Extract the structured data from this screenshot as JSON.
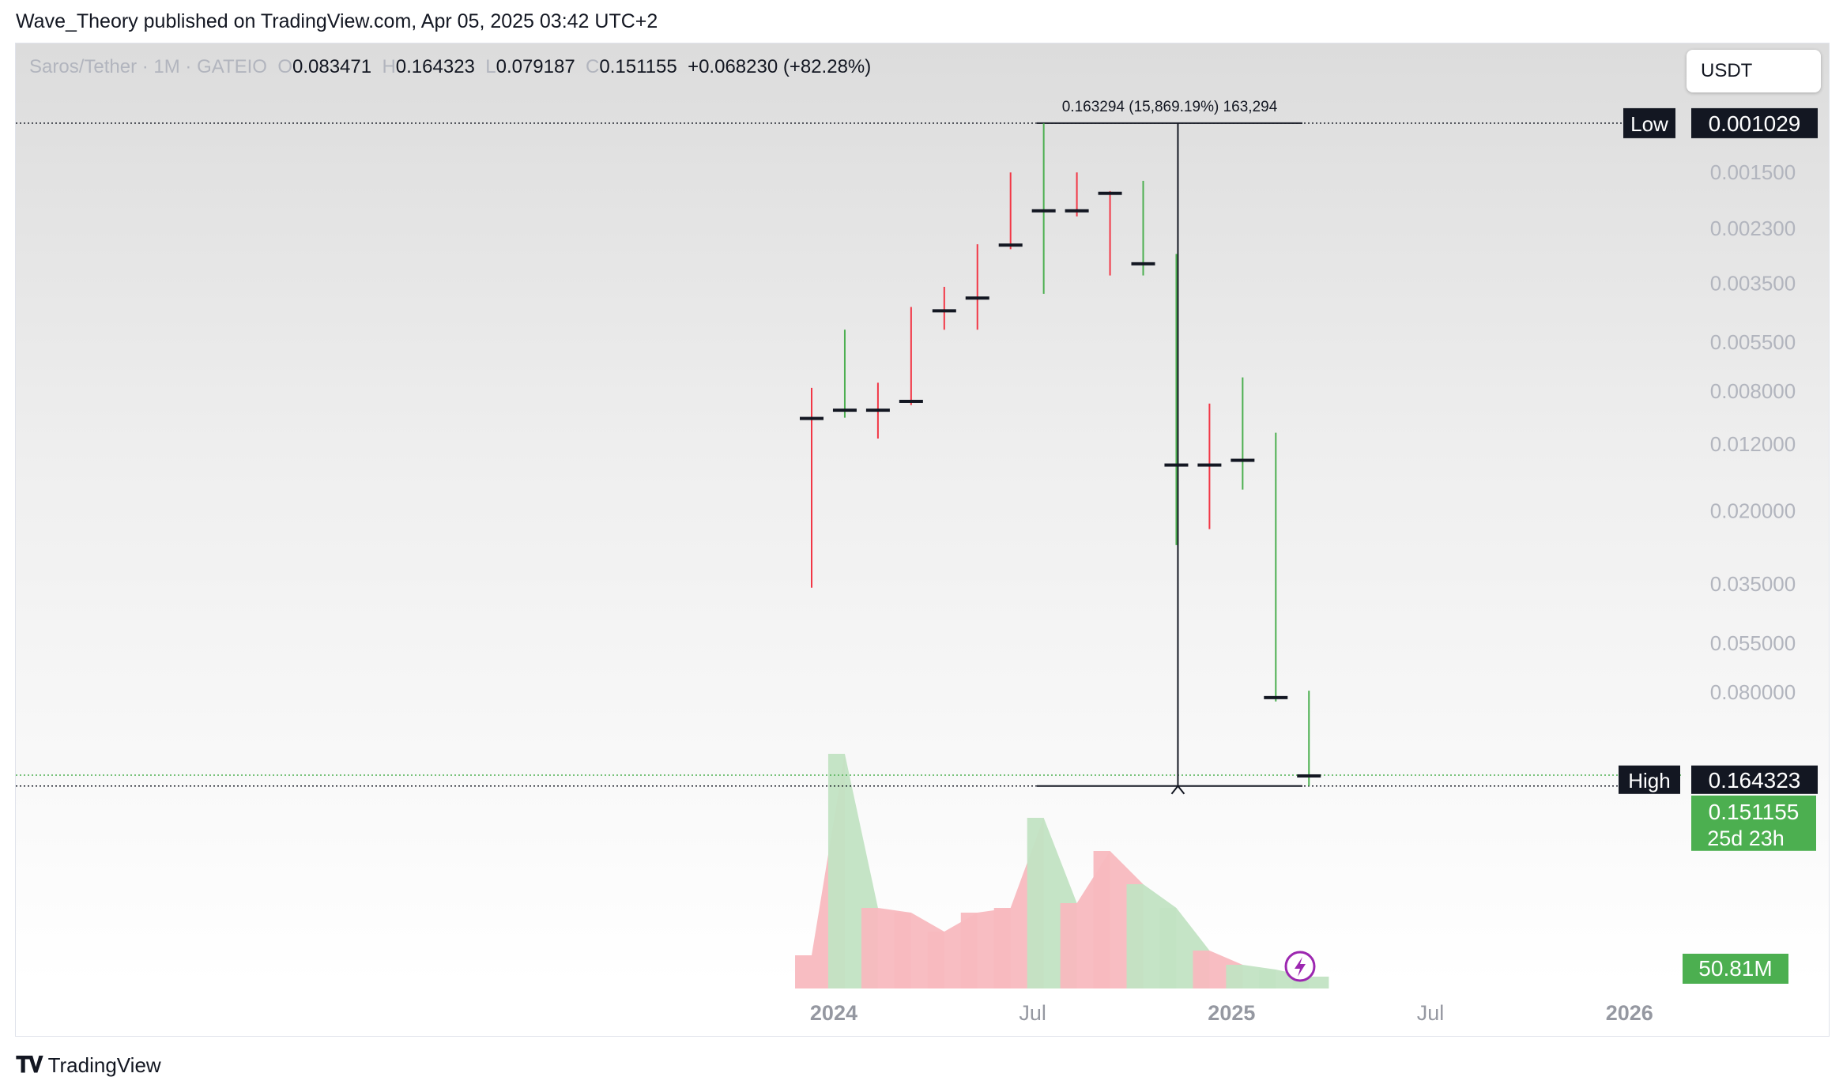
{
  "header": {
    "publisher": "Wave_Theory published on TradingView.com, Apr 05, 2025 03:42 UTC+2"
  },
  "legend": {
    "symbol": "Saros/Tether · 1M · GATEIO",
    "o_label": "O",
    "open": "0.083471",
    "h_label": "H",
    "high": "0.164323",
    "l_label": "L",
    "low": "0.079187",
    "c_label": "C",
    "close": "0.151155",
    "change": "+0.068230 (+82.28%)"
  },
  "currency": "USDT",
  "footer": {
    "brand": "TradingView",
    "logo": "tradingview-logo-icon"
  },
  "colors": {
    "up": "#4caf50",
    "down": "#f23645",
    "vol_up": "#c2e3c3",
    "vol_down": "#f8b9bf"
  },
  "chart_data": {
    "type": "candlestick",
    "scale": "log",
    "x_ticks": [
      "2024",
      "Jul",
      "2025",
      "Jul",
      "2026"
    ],
    "y_ticks": [
      "0.080000",
      "0.055000",
      "0.035000",
      "0.020000",
      "0.012000",
      "0.008000",
      "0.005500",
      "0.003500",
      "0.002300",
      "0.001500"
    ],
    "high_marker": {
      "label": "High",
      "value": "0.164323"
    },
    "low_marker": {
      "label": "Low",
      "value": "0.001029"
    },
    "last_price": {
      "value": "0.151155",
      "countdown": "25d 23h"
    },
    "volume_label": "50.81M",
    "measure_label": "0.163294 (15,869.19%) 163,294",
    "candles": [
      {
        "date": "2023-12",
        "o": 0.0098,
        "h": 0.036,
        "l": 0.0078,
        "c": 0.0078
      },
      {
        "date": "2024-01",
        "o": 0.0078,
        "h": 0.0098,
        "l": 0.005,
        "c": 0.0092
      },
      {
        "date": "2024-02",
        "o": 0.0092,
        "h": 0.0115,
        "l": 0.0075,
        "c": 0.0087
      },
      {
        "date": "2024-03",
        "o": 0.0086,
        "h": 0.0089,
        "l": 0.0042,
        "c": 0.0043
      },
      {
        "date": "2024-04",
        "o": 0.0043,
        "h": 0.005,
        "l": 0.0036,
        "c": 0.0039
      },
      {
        "date": "2024-05",
        "o": 0.0039,
        "h": 0.005,
        "l": 0.0026,
        "c": 0.0026
      },
      {
        "date": "2024-06",
        "o": 0.0026,
        "h": 0.0027,
        "l": 0.0015,
        "c": 0.0016
      },
      {
        "date": "2024-07",
        "o": 0.0016,
        "h": 0.0038,
        "l": 0.00103,
        "c": 0.002
      },
      {
        "date": "2024-08",
        "o": 0.002,
        "h": 0.0021,
        "l": 0.0015,
        "c": 0.0018
      },
      {
        "date": "2024-09",
        "o": 0.00175,
        "h": 0.0033,
        "l": 0.00173,
        "c": 0.00174
      },
      {
        "date": "2024-10",
        "o": 0.00175,
        "h": 0.0033,
        "l": 0.0016,
        "c": 0.003
      },
      {
        "date": "2024-11",
        "o": 0.003,
        "h": 0.026,
        "l": 0.0028,
        "c": 0.014
      },
      {
        "date": "2024-12",
        "o": 0.014,
        "h": 0.023,
        "l": 0.0088,
        "c": 0.0095
      },
      {
        "date": "2025-01",
        "o": 0.0095,
        "h": 0.017,
        "l": 0.0072,
        "c": 0.0135
      },
      {
        "date": "2025-02",
        "o": 0.0135,
        "h": 0.086,
        "l": 0.011,
        "c": 0.083
      },
      {
        "date": "2025-03",
        "o": 0.083471,
        "h": 0.164323,
        "l": 0.079187,
        "c": 0.151155
      }
    ],
    "volume": [
      {
        "date": "2023-12",
        "dir": "down",
        "v": 0.14
      },
      {
        "date": "2024-01",
        "dir": "up",
        "v": 0.99
      },
      {
        "date": "2024-02",
        "dir": "down",
        "v": 0.34
      },
      {
        "date": "2024-03",
        "dir": "down",
        "v": 0.32
      },
      {
        "date": "2024-04",
        "dir": "down",
        "v": 0.24
      },
      {
        "date": "2024-05",
        "dir": "down",
        "v": 0.32
      },
      {
        "date": "2024-06",
        "dir": "down",
        "v": 0.34
      },
      {
        "date": "2024-07",
        "dir": "up",
        "v": 0.72
      },
      {
        "date": "2024-08",
        "dir": "down",
        "v": 0.36
      },
      {
        "date": "2024-09",
        "dir": "down",
        "v": 0.58
      },
      {
        "date": "2024-10",
        "dir": "up",
        "v": 0.44
      },
      {
        "date": "2024-11",
        "dir": "up",
        "v": 0.34
      },
      {
        "date": "2024-12",
        "dir": "down",
        "v": 0.16
      },
      {
        "date": "2025-01",
        "dir": "up",
        "v": 0.1
      },
      {
        "date": "2025-02",
        "dir": "up",
        "v": 0.08
      },
      {
        "date": "2025-03",
        "dir": "up",
        "v": 0.05
      }
    ]
  }
}
